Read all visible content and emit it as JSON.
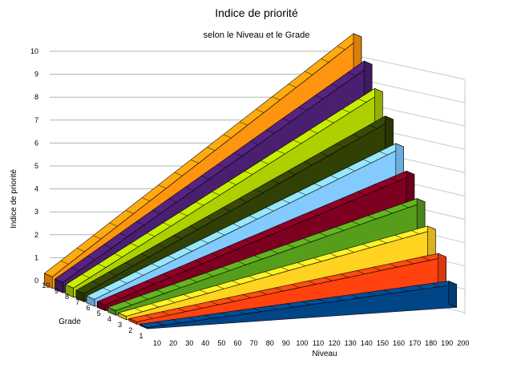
{
  "chart_data": {
    "type": "area",
    "variant": "3d-deep",
    "title": "Indice de priorité",
    "subtitle": "selon le Niveau et le Grade",
    "xlabel": "Niveau",
    "ylabel": "Indice de priorité",
    "zlabel": "Grade",
    "x": [
      10,
      20,
      30,
      40,
      50,
      60,
      70,
      80,
      90,
      100,
      110,
      120,
      130,
      140,
      150,
      160,
      170,
      180,
      190,
      200
    ],
    "y_ticks": [
      0,
      1,
      2,
      3,
      4,
      5,
      6,
      7,
      8,
      9,
      10
    ],
    "z_ticks": [
      10,
      9,
      8,
      7,
      6,
      5,
      4,
      3,
      2,
      1
    ],
    "ylim": [
      0,
      10
    ],
    "grid": true,
    "legend": null,
    "series": [
      {
        "name": "1",
        "color": "#004586",
        "values": [
          0.05,
          0.1,
          0.15,
          0.2,
          0.25,
          0.3,
          0.35,
          0.4,
          0.45,
          0.5,
          0.55,
          0.6,
          0.65,
          0.7,
          0.75,
          0.8,
          0.85,
          0.9,
          0.95,
          1.0
        ]
      },
      {
        "name": "2",
        "color": "#ff420e",
        "values": [
          0.1,
          0.2,
          0.3,
          0.4,
          0.5,
          0.6,
          0.7,
          0.8,
          0.9,
          1.0,
          1.1,
          1.2,
          1.3,
          1.4,
          1.5,
          1.6,
          1.7,
          1.8,
          1.9,
          2.0
        ]
      },
      {
        "name": "3",
        "color": "#ffd320",
        "values": [
          0.15,
          0.3,
          0.45,
          0.6,
          0.75,
          0.9,
          1.05,
          1.2,
          1.35,
          1.5,
          1.65,
          1.8,
          1.95,
          2.1,
          2.25,
          2.4,
          2.55,
          2.7,
          2.85,
          3.0
        ]
      },
      {
        "name": "4",
        "color": "#579d1c",
        "values": [
          0.2,
          0.4,
          0.6,
          0.8,
          1.0,
          1.2,
          1.4,
          1.6,
          1.8,
          2.0,
          2.2,
          2.4,
          2.6,
          2.8,
          3.0,
          3.2,
          3.4,
          3.6,
          3.8,
          4.0
        ]
      },
      {
        "name": "5",
        "color": "#7e0021",
        "values": [
          0.25,
          0.5,
          0.75,
          1.0,
          1.25,
          1.5,
          1.75,
          2.0,
          2.25,
          2.5,
          2.75,
          3.0,
          3.25,
          3.5,
          3.75,
          4.0,
          4.25,
          4.5,
          4.75,
          5.0
        ]
      },
      {
        "name": "6",
        "color": "#83caff",
        "values": [
          0.3,
          0.6,
          0.9,
          1.2,
          1.5,
          1.8,
          2.1,
          2.4,
          2.7,
          3.0,
          3.3,
          3.6,
          3.9,
          4.2,
          4.5,
          4.8,
          5.1,
          5.4,
          5.7,
          6.0
        ]
      },
      {
        "name": "7",
        "color": "#314004",
        "values": [
          0.35,
          0.7,
          1.05,
          1.4,
          1.75,
          2.1,
          2.45,
          2.8,
          3.15,
          3.5,
          3.85,
          4.2,
          4.55,
          4.9,
          5.25,
          5.6,
          5.95,
          6.3,
          6.65,
          7.0
        ]
      },
      {
        "name": "8",
        "color": "#aecf00",
        "values": [
          0.4,
          0.8,
          1.2,
          1.6,
          2.0,
          2.4,
          2.8,
          3.2,
          3.6,
          4.0,
          4.4,
          4.8,
          5.2,
          5.6,
          6.0,
          6.4,
          6.8,
          7.2,
          7.6,
          8.0
        ]
      },
      {
        "name": "9",
        "color": "#4b1f6f",
        "values": [
          0.45,
          0.9,
          1.35,
          1.8,
          2.25,
          2.7,
          3.15,
          3.6,
          4.05,
          4.5,
          4.95,
          5.4,
          5.85,
          6.3,
          6.75,
          7.2,
          7.65,
          8.1,
          8.55,
          9.0
        ]
      },
      {
        "name": "10",
        "color": "#ff950e",
        "values": [
          0.5,
          1.0,
          1.5,
          2.0,
          2.5,
          3.0,
          3.5,
          4.0,
          4.5,
          5.0,
          5.5,
          6.0,
          6.5,
          7.0,
          7.5,
          8.0,
          8.5,
          9.0,
          9.5,
          10.0
        ]
      }
    ]
  }
}
